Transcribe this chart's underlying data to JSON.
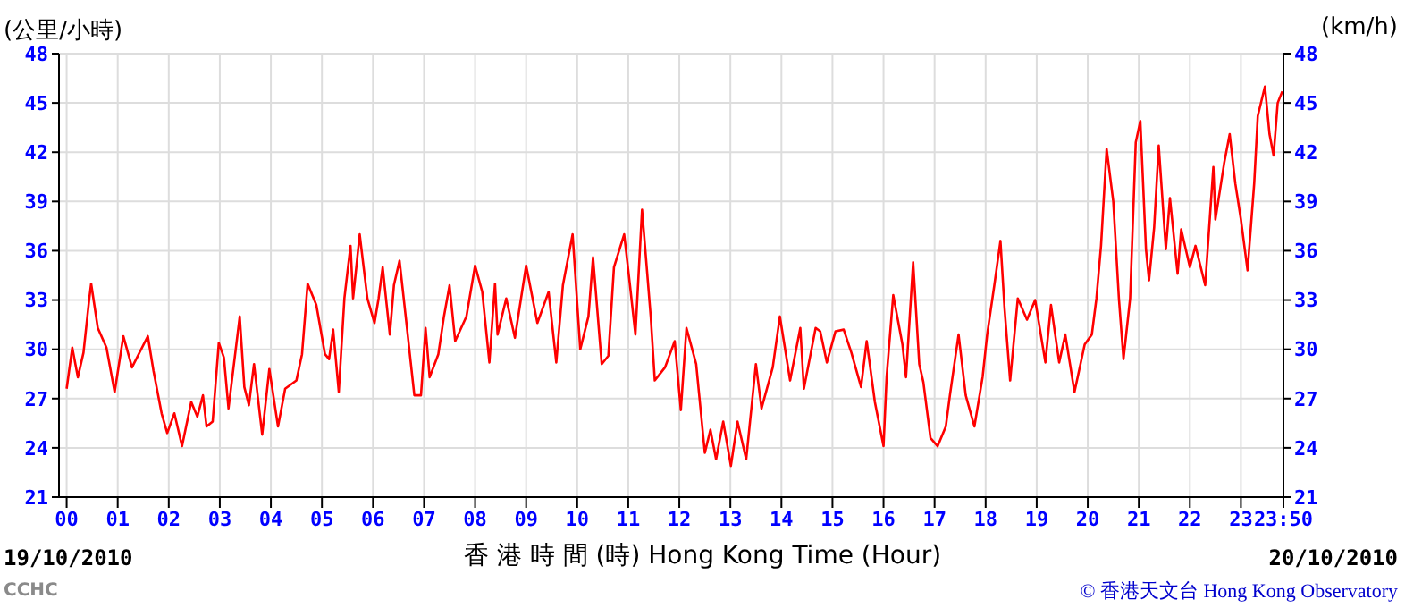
{
  "chart_data": {
    "type": "line",
    "ylabel": "(公里/小時)",
    "y2label": "(km/h)",
    "xlabel": "香 港 時 間 (時)  Hong Kong Time (Hour)",
    "annotations": [
      "19/10/2010",
      "20/10/2010",
      "© 香港天文台 Hong Kong Observatory",
      "CCHC"
    ],
    "grid": true,
    "marker": "none",
    "line_style": "solid",
    "xlim": [
      -0.15,
      23.833
    ],
    "xticks": [
      {
        "value": 0,
        "label": "00"
      },
      {
        "value": 1,
        "label": "01"
      },
      {
        "value": 2,
        "label": "02"
      },
      {
        "value": 3,
        "label": "03"
      },
      {
        "value": 4,
        "label": "04"
      },
      {
        "value": 5,
        "label": "05"
      },
      {
        "value": 6,
        "label": "06"
      },
      {
        "value": 7,
        "label": "07"
      },
      {
        "value": 8,
        "label": "08"
      },
      {
        "value": 9,
        "label": "09"
      },
      10,
      11,
      12,
      13,
      14,
      15,
      16,
      17,
      18,
      19,
      20,
      21,
      22,
      23,
      {
        "value": 23.833,
        "label": "23:50"
      }
    ],
    "ylim": [
      21,
      48
    ],
    "yticks": [
      21,
      24,
      27,
      30,
      33,
      36,
      39,
      42,
      45,
      48
    ],
    "y2lim": [
      21,
      48
    ],
    "y2ticks": [
      21,
      24,
      27,
      30,
      33,
      36,
      39,
      42,
      45,
      48
    ],
    "x": [
      0,
      0.11,
      0.22,
      0.33,
      0.44,
      0.48,
      0.61,
      0.78,
      0.94,
      1.11,
      1.28,
      1.59,
      1.7,
      1.86,
      1.97,
      2.11,
      2.26,
      2.44,
      2.56,
      2.67,
      2.74,
      2.86,
      2.98,
      3.08,
      3.17,
      3.3,
      3.39,
      3.48,
      3.57,
      3.67,
      3.83,
      3.97,
      4.14,
      4.28,
      4.5,
      4.61,
      4.72,
      4.89,
      5.06,
      5.14,
      5.22,
      5.33,
      5.44,
      5.56,
      5.61,
      5.74,
      5.89,
      6.03,
      6.11,
      6.19,
      6.33,
      6.41,
      6.52,
      6.63,
      6.81,
      6.94,
      7.03,
      7.11,
      7.28,
      7.39,
      7.5,
      7.61,
      7.83,
      8.0,
      8.14,
      8.28,
      8.39,
      8.44,
      8.61,
      8.78,
      9.0,
      9.22,
      9.44,
      9.59,
      9.72,
      9.91,
      10.06,
      10.22,
      10.31,
      10.48,
      10.61,
      10.72,
      10.92,
      11.03,
      11.14,
      11.27,
      11.44,
      11.52,
      11.72,
      11.91,
      12.03,
      12.14,
      12.33,
      12.5,
      12.61,
      12.72,
      12.86,
      13.01,
      13.14,
      13.31,
      13.5,
      13.61,
      13.83,
      13.97,
      14.17,
      14.37,
      14.44,
      14.67,
      14.76,
      14.89,
      15.06,
      15.22,
      15.37,
      15.56,
      15.67,
      15.83,
      16.0,
      16.06,
      16.19,
      16.37,
      16.44,
      16.58,
      16.7,
      16.78,
      16.92,
      17.06,
      17.22,
      17.3,
      17.47,
      17.61,
      17.78,
      17.94,
      18.03,
      18.17,
      18.29,
      18.37,
      18.48,
      18.63,
      18.81,
      18.97,
      19.17,
      19.28,
      19.44,
      19.56,
      19.74,
      19.94,
      20.08,
      20.17,
      20.26,
      20.37,
      20.5,
      20.61,
      20.7,
      20.83,
      20.94,
      21.03,
      21.14,
      21.2,
      21.3,
      21.39,
      21.53,
      21.61,
      21.76,
      21.83,
      22.0,
      22.11,
      22.3,
      22.46,
      22.5,
      22.67,
      22.78,
      22.89,
      23.0,
      23.13,
      23.26,
      23.33,
      23.47,
      23.56,
      23.64,
      23.72,
      23.81
    ],
    "series": [
      {
        "color": "#ff0000",
        "values": [
          27.6,
          30.1,
          28.3,
          29.8,
          33.0,
          34.0,
          31.3,
          30.1,
          27.4,
          30.8,
          28.9,
          30.8,
          28.7,
          26.1,
          24.9,
          26.1,
          24.1,
          26.8,
          25.9,
          27.2,
          25.3,
          25.6,
          30.4,
          29.5,
          26.4,
          29.7,
          32.0,
          27.7,
          26.6,
          29.1,
          24.8,
          28.8,
          25.3,
          27.6,
          28.1,
          29.7,
          34.0,
          32.7,
          29.7,
          29.4,
          31.2,
          27.4,
          33.1,
          36.3,
          33.1,
          37.0,
          33.1,
          31.6,
          33.1,
          35.0,
          30.9,
          33.9,
          35.4,
          32.3,
          27.2,
          27.2,
          31.3,
          28.3,
          29.7,
          32.0,
          33.9,
          30.5,
          32.0,
          35.1,
          33.5,
          29.2,
          34.0,
          30.9,
          33.1,
          30.7,
          35.1,
          31.6,
          33.5,
          29.2,
          33.9,
          37.0,
          30.0,
          32.0,
          35.6,
          29.1,
          29.6,
          35.0,
          37.0,
          34.0,
          30.9,
          38.5,
          32.0,
          28.1,
          28.9,
          30.5,
          26.3,
          31.3,
          29.1,
          23.7,
          25.1,
          23.3,
          25.6,
          22.9,
          25.6,
          23.3,
          29.1,
          26.4,
          28.9,
          32.0,
          28.1,
          31.3,
          27.6,
          31.3,
          31.1,
          29.2,
          31.1,
          31.2,
          29.8,
          27.7,
          30.5,
          26.8,
          24.1,
          28.3,
          33.3,
          30.3,
          28.3,
          35.3,
          29.1,
          28.0,
          24.6,
          24.1,
          25.3,
          27.2,
          30.9,
          27.2,
          25.3,
          28.3,
          30.9,
          33.9,
          36.6,
          32.5,
          28.1,
          33.1,
          31.8,
          33.0,
          29.2,
          32.7,
          29.2,
          30.9,
          27.4,
          30.3,
          30.9,
          33.1,
          36.3,
          42.2,
          39.0,
          33.1,
          29.4,
          33.1,
          42.6,
          43.9,
          36.1,
          34.2,
          37.4,
          42.4,
          36.1,
          39.2,
          34.6,
          37.3,
          35.0,
          36.3,
          33.9,
          41.1,
          37.9,
          41.3,
          43.1,
          40.1,
          37.9,
          34.8,
          40.1,
          44.2,
          46.0,
          43.1,
          41.8,
          45.0,
          45.7
        ]
      }
    ]
  }
}
